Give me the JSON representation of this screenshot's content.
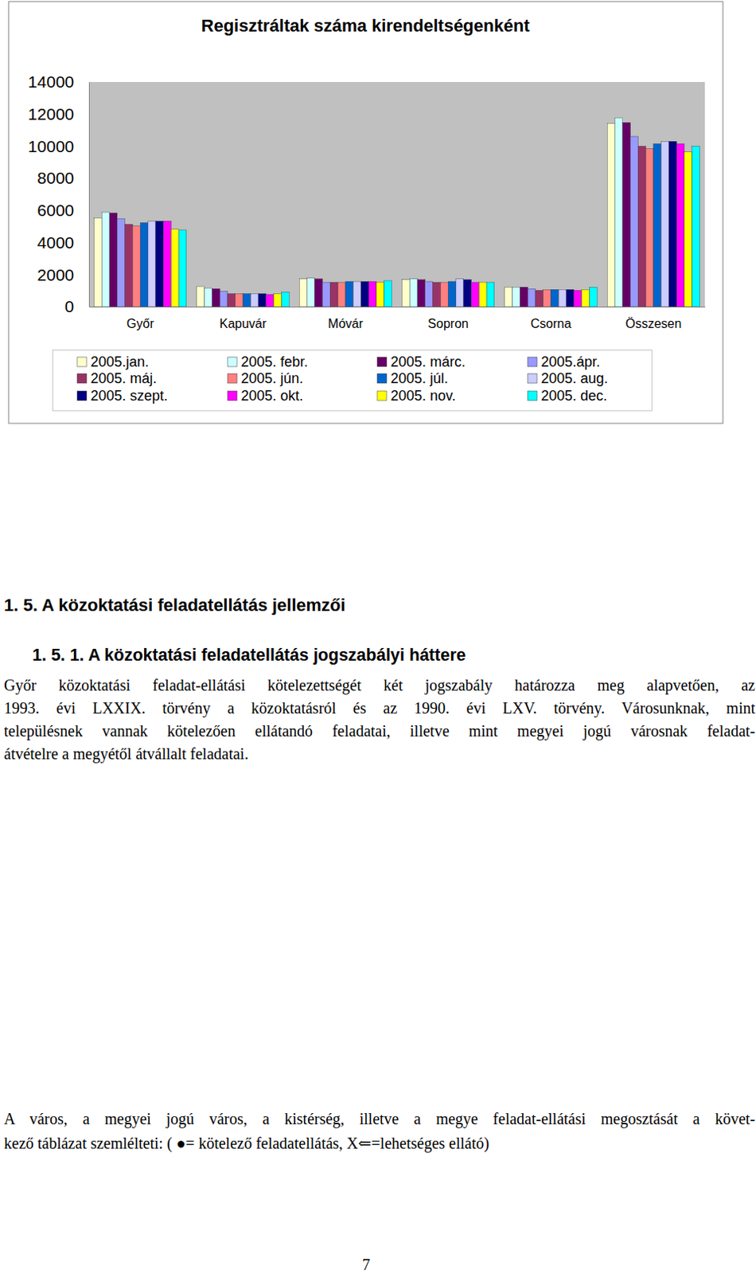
{
  "chart_data": {
    "type": "bar",
    "title": "Regisztráltak száma kirendeltségenként",
    "categories": [
      "Győr",
      "Kapuvár",
      "Móvár",
      "Sopron",
      "Csorna",
      "Összesen"
    ],
    "series": [
      {
        "name": "2005.jan.",
        "color": "#ffffcc",
        "values": [
          5530,
          1270,
          1730,
          1680,
          1220,
          11420
        ]
      },
      {
        "name": "2005. febr.",
        "color": "#ccffff",
        "values": [
          5890,
          1170,
          1780,
          1730,
          1220,
          11780
        ]
      },
      {
        "name": "2005. márc.",
        "color": "#660066",
        "values": [
          5840,
          1120,
          1730,
          1680,
          1220,
          11470
        ]
      },
      {
        "name": "2005.ápr.",
        "color": "#9999ff",
        "values": [
          5480,
          960,
          1520,
          1570,
          1120,
          10610
        ]
      },
      {
        "name": "2005. máj.",
        "color": "#993366",
        "values": [
          5130,
          810,
          1520,
          1520,
          1020,
          10000
        ]
      },
      {
        "name": "2005. jún.",
        "color": "#ff8080",
        "values": [
          5030,
          810,
          1520,
          1520,
          1070,
          9850
        ]
      },
      {
        "name": "2005. júl.",
        "color": "#0066cc",
        "values": [
          5230,
          810,
          1570,
          1570,
          1070,
          10150
        ]
      },
      {
        "name": "2005. aug.",
        "color": "#ccccff",
        "values": [
          5330,
          810,
          1570,
          1730,
          1070,
          10300
        ]
      },
      {
        "name": "2005. szept.",
        "color": "#000080",
        "values": [
          5330,
          810,
          1570,
          1680,
          1070,
          10300
        ]
      },
      {
        "name": "2005. okt.",
        "color": "#ff00ff",
        "values": [
          5330,
          760,
          1570,
          1520,
          1020,
          10150
        ]
      },
      {
        "name": "2005. nov.",
        "color": "#ffff00",
        "values": [
          4820,
          810,
          1520,
          1520,
          1070,
          9640
        ]
      },
      {
        "name": "2005. dec.",
        "color": "#00ffff",
        "values": [
          4770,
          910,
          1620,
          1520,
          1220,
          10000
        ]
      }
    ],
    "ylim": [
      0,
      14000
    ],
    "yticks": [
      0,
      2000,
      4000,
      6000,
      8000,
      10000,
      12000,
      14000
    ],
    "legend": "bottom",
    "grid": false
  },
  "document": {
    "heading": "1. 5. A közoktatási feladatellátás jellemzői",
    "subheading": "1. 5. 1. A közoktatási feladatellátás jogszabályi háttere",
    "paragraphs": [
      [
        "Győr közoktatási feladat-ellátási kötelezettségét két jogszabály határozza meg alapvetően, az",
        "1993. évi LXXIX. törvény a közoktatásról és az 1990. évi LXV. törvény. Városunknak, mint",
        "településnek vannak kötelezően ellátandó feladatai, illetve mint megyei jogú városnak feladat-",
        "átvételre a megyétől átvállalt feladatai."
      ],
      [
        "A város, a megyei jogú város, a kistérség, illetve a megye feladat-ellátási megosztását a követ-",
        "kező táblázat szemlélteti: ( ●= kötelező feladatellátás, X⇐=lehetséges ellátó)"
      ]
    ],
    "page_number": "7"
  }
}
